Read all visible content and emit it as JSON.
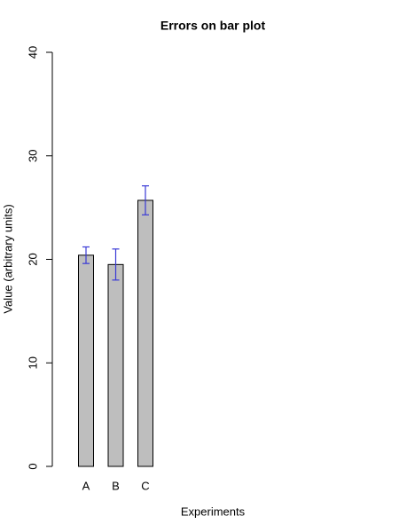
{
  "chart_data": {
    "type": "bar",
    "title": "Errors on bar plot",
    "x_label": "Experiments",
    "y_label": "Value (arbitrary units)",
    "categories": [
      "A",
      "B",
      "C"
    ],
    "values": [
      20.4,
      19.5,
      25.7
    ],
    "errors": [
      0.8,
      1.5,
      1.4
    ],
    "color": "#bebebe",
    "error_color": "#3a3ad6",
    "ylim": [
      0,
      40
    ],
    "yticks": [
      0,
      10,
      20,
      30,
      40
    ]
  }
}
